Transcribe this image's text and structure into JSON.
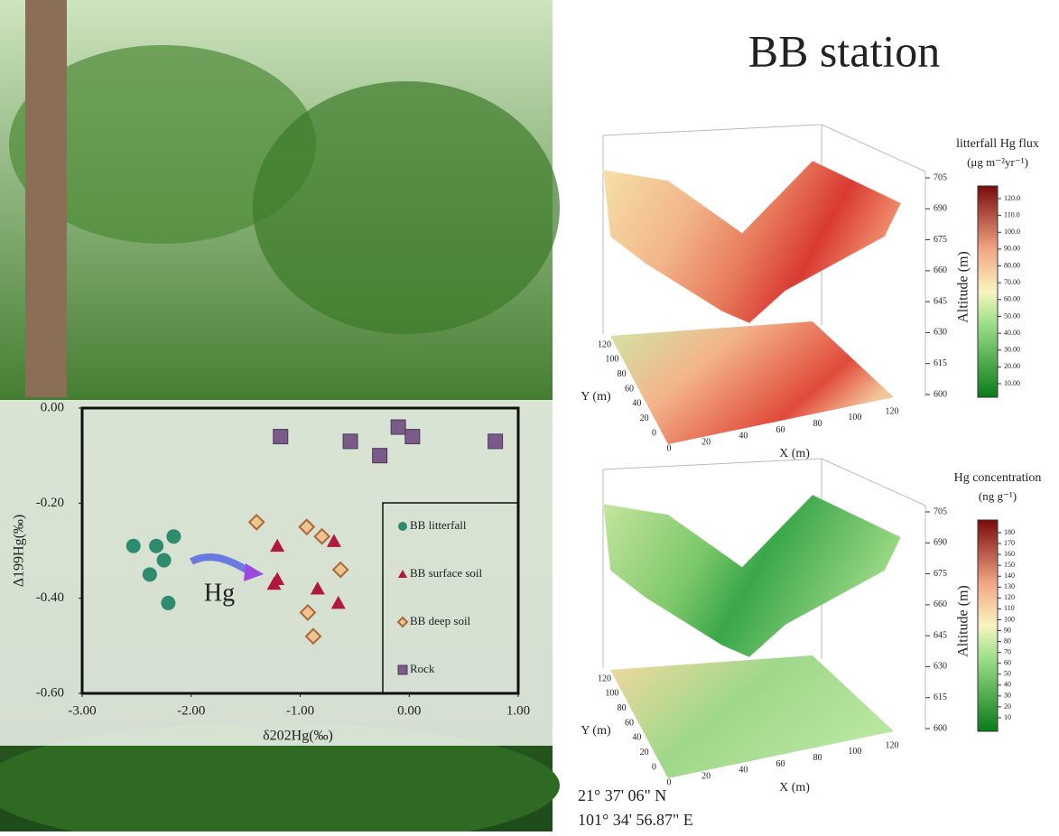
{
  "title": "BB station",
  "chart_data": {
    "type": "scatter",
    "xlabel": "δ202Hg(‰)",
    "ylabel": "Δ199Hg(‰)",
    "xlim": [
      -3,
      1
    ],
    "ylim": [
      -0.6,
      0
    ],
    "xticks": [
      {
        "value": -3,
        "label": "-3.00"
      },
      {
        "value": -2,
        "label": "-2.00"
      },
      {
        "value": -1,
        "label": "-1.00"
      },
      {
        "value": 0,
        "label": "0.00"
      },
      {
        "value": 1,
        "label": "1.00"
      }
    ],
    "yticks": [
      {
        "value": 0,
        "label": "0.00"
      },
      {
        "value": -0.2,
        "label": "-0.20"
      },
      {
        "value": -0.4,
        "label": "-0.40"
      },
      {
        "value": -0.6,
        "label": "-0.60"
      }
    ],
    "legend": "right",
    "annotation": "Hg",
    "series": [
      {
        "name": "BB litterfall",
        "marker": "circle",
        "color": "#2e8b6e",
        "x": [
          -2.53,
          -2.32,
          -2.16,
          -2.25,
          -2.38,
          -2.21
        ],
        "y": [
          -0.29,
          -0.29,
          -0.27,
          -0.32,
          -0.35,
          -0.41
        ]
      },
      {
        "name": "BB surface soil",
        "marker": "triangle",
        "color": "#b0183c",
        "x": [
          -1.21,
          -0.69,
          -1.21,
          -1.24,
          -0.84,
          -0.65
        ],
        "y": [
          -0.29,
          -0.28,
          -0.36,
          -0.37,
          -0.38,
          -0.41
        ]
      },
      {
        "name": "BB deep soil",
        "marker": "diamond",
        "color": "#f0c48e",
        "x": [
          -1.4,
          -0.94,
          -0.8,
          -0.63,
          -0.93,
          -0.88
        ],
        "y": [
          -0.24,
          -0.25,
          -0.27,
          -0.34,
          -0.43,
          -0.48
        ]
      },
      {
        "name": "Rock",
        "marker": "square",
        "color": "#7a5a88",
        "x": [
          -1.18,
          -0.54,
          -0.27,
          -0.1,
          0.03,
          0.79
        ],
        "y": [
          -0.06,
          -0.07,
          -0.1,
          -0.04,
          -0.06,
          -0.07
        ]
      }
    ]
  },
  "surfaces": [
    {
      "colorbar_title": "litterfall Hg flux",
      "colorbar_unit": "(μg m⁻²yr⁻¹)",
      "colorbar_ticks": [
        {
          "value": 120,
          "label": "120.0"
        },
        {
          "value": 110,
          "label": "110.0"
        },
        {
          "value": 100,
          "label": "100.0"
        },
        {
          "value": 90,
          "label": "90.00"
        },
        {
          "value": 80,
          "label": "80.00"
        },
        {
          "value": 70,
          "label": "70.00"
        },
        {
          "value": 60,
          "label": "60.00"
        },
        {
          "value": 50,
          "label": "50.00"
        },
        {
          "value": 40,
          "label": "40.00"
        },
        {
          "value": 30,
          "label": "30.00"
        },
        {
          "value": 20,
          "label": "20.00"
        },
        {
          "value": 10,
          "label": "10.00"
        }
      ],
      "zlabel": "Altitude (m)",
      "zticks": [
        705,
        690,
        675,
        660,
        645,
        630,
        615,
        600
      ],
      "xlabel": "X (m)",
      "xticks": [
        0,
        20,
        40,
        60,
        80,
        100,
        120
      ],
      "ylabel": "Y (m)",
      "yticks": [
        0,
        20,
        40,
        60,
        80,
        100,
        120
      ]
    },
    {
      "colorbar_title": "Hg concentration",
      "colorbar_unit": "(ng g⁻¹)",
      "colorbar_ticks": [
        180,
        170,
        160,
        150,
        140,
        130,
        120,
        110,
        100,
        90,
        80,
        70,
        60,
        50,
        40,
        30,
        20,
        10
      ],
      "zlabel": "Altitude (m)",
      "zticks": [
        705,
        690,
        675,
        660,
        645,
        630,
        615,
        600
      ],
      "xlabel": "X (m)",
      "xticks": [
        0,
        20,
        40,
        60,
        80,
        100,
        120
      ],
      "ylabel": "Y (m)",
      "yticks": [
        0,
        20,
        40,
        60,
        80,
        100,
        120
      ]
    }
  ],
  "coordinates": [
    "21° 37' 06\" N",
    "101° 34' 56.87\" E"
  ]
}
